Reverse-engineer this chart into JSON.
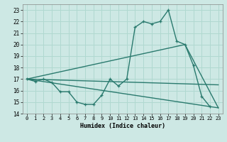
{
  "background_color": "#cde8e4",
  "grid_color": "#b0d8d0",
  "line_color": "#2a7a6e",
  "xlim": [
    -0.5,
    23.5
  ],
  "ylim": [
    14,
    23.5
  ],
  "ytick_vals": [
    14,
    15,
    16,
    17,
    18,
    19,
    20,
    21,
    22,
    23
  ],
  "xtick_vals": [
    0,
    1,
    2,
    3,
    4,
    5,
    6,
    7,
    8,
    9,
    10,
    11,
    12,
    13,
    14,
    15,
    16,
    17,
    18,
    19,
    20,
    21,
    22,
    23
  ],
  "xlabel": "Humidex (Indice chaleur)",
  "curve_x": [
    0,
    1,
    2,
    3,
    4,
    5,
    6,
    7,
    8,
    9,
    10,
    11,
    12,
    13,
    14,
    15,
    16,
    17,
    18,
    19,
    20,
    21,
    22
  ],
  "curve_y": [
    17.0,
    16.8,
    17.0,
    16.7,
    15.9,
    15.9,
    15.0,
    14.8,
    14.8,
    15.6,
    17.0,
    16.4,
    17.0,
    21.5,
    22.0,
    21.8,
    22.0,
    23.0,
    20.3,
    20.0,
    18.2,
    15.5,
    14.6
  ],
  "line1_x": [
    0,
    23
  ],
  "line1_y": [
    17.0,
    14.5
  ],
  "line2_x": [
    0,
    19,
    23
  ],
  "line2_y": [
    17.0,
    20.0,
    14.5
  ],
  "line3_x": [
    0,
    23
  ],
  "line3_y": [
    17.0,
    16.5
  ]
}
